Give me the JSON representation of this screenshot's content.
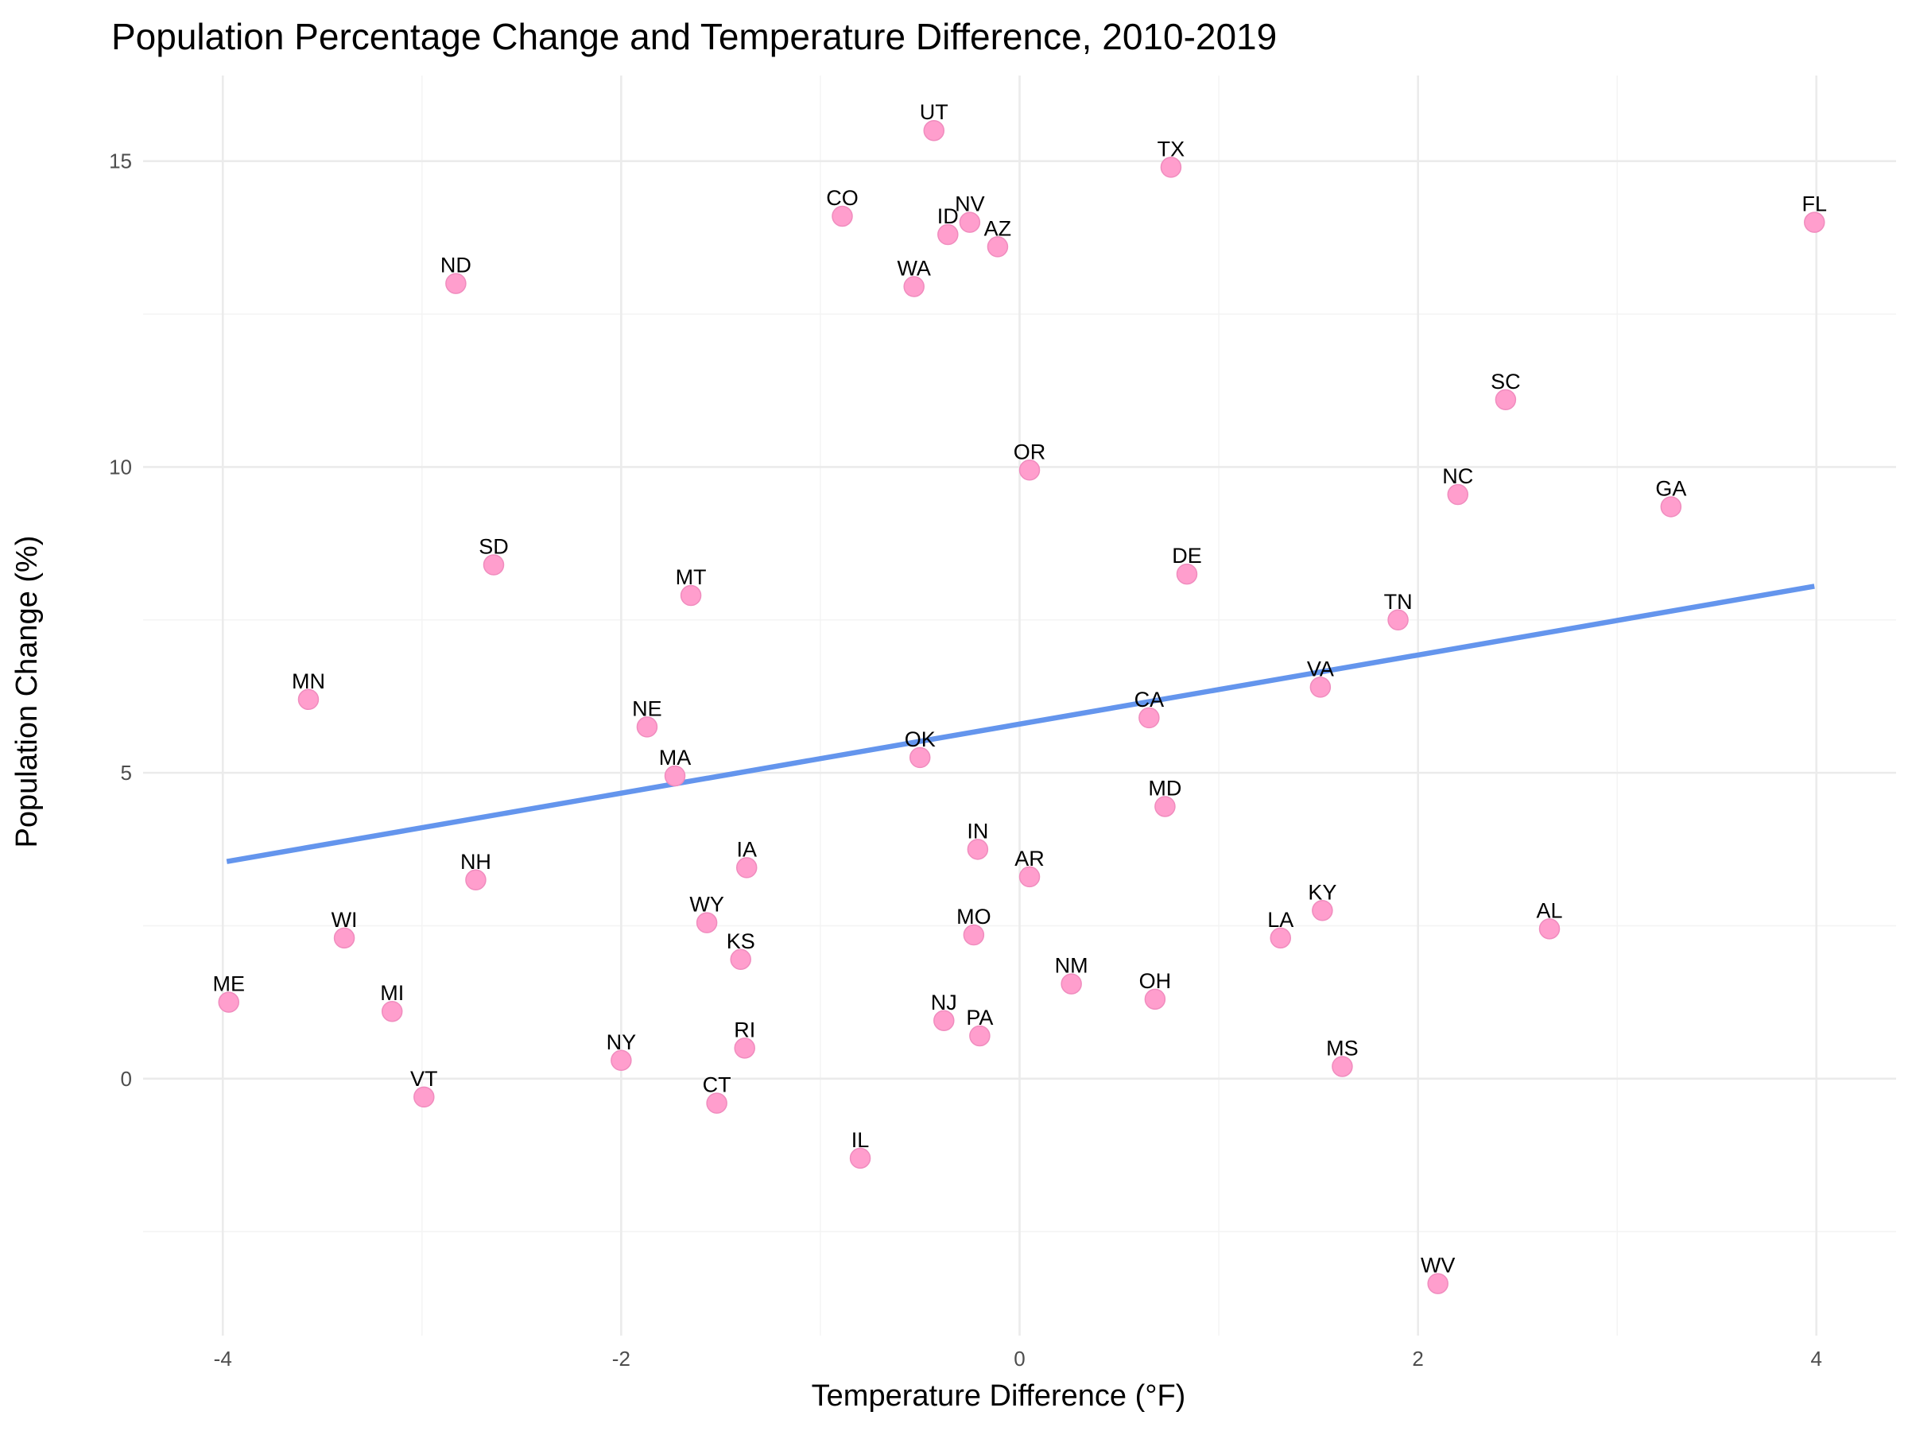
{
  "chart_data": {
    "type": "scatter",
    "title": "Population Percentage Change and Temperature Difference, 2010-2019",
    "xlabel": "Temperature Difference (°F)",
    "ylabel": "Population Change (%)",
    "xlim": [
      -4.4,
      4.4
    ],
    "ylim": [
      -4.2,
      16.4
    ],
    "x_ticks": [
      -4,
      -2,
      0,
      2,
      4
    ],
    "y_ticks": [
      0,
      5,
      10,
      15
    ],
    "x_tick_labels": [
      "-4",
      "-2",
      "0",
      "2",
      "4"
    ],
    "y_tick_labels": [
      "0",
      "5",
      "10",
      "15"
    ],
    "grid": true,
    "point_color": "#ff9ecd",
    "trend_color": "#6495ed",
    "trend_line": {
      "x": [
        -3.98,
        3.99
      ],
      "y": [
        3.55,
        8.05
      ]
    },
    "points": [
      {
        "label": "UT",
        "x": -0.43,
        "y": 15.5
      },
      {
        "label": "TX",
        "x": 0.76,
        "y": 14.9
      },
      {
        "label": "CO",
        "x": -0.89,
        "y": 14.1
      },
      {
        "label": "NV",
        "x": -0.25,
        "y": 14.0
      },
      {
        "label": "ID",
        "x": -0.36,
        "y": 13.8
      },
      {
        "label": "AZ",
        "x": -0.11,
        "y": 13.6
      },
      {
        "label": "FL",
        "x": 3.99,
        "y": 14.0
      },
      {
        "label": "ND",
        "x": -2.83,
        "y": 13.0
      },
      {
        "label": "WA",
        "x": -0.53,
        "y": 12.95
      },
      {
        "label": "SC",
        "x": 2.44,
        "y": 11.1
      },
      {
        "label": "OR",
        "x": 0.05,
        "y": 9.95
      },
      {
        "label": "NC",
        "x": 2.2,
        "y": 9.55
      },
      {
        "label": "GA",
        "x": 3.27,
        "y": 9.35
      },
      {
        "label": "SD",
        "x": -2.64,
        "y": 8.4
      },
      {
        "label": "DE",
        "x": 0.84,
        "y": 8.25
      },
      {
        "label": "MT",
        "x": -1.65,
        "y": 7.9
      },
      {
        "label": "TN",
        "x": 1.9,
        "y": 7.5
      },
      {
        "label": "VA",
        "x": 1.51,
        "y": 6.4
      },
      {
        "label": "MN",
        "x": -3.57,
        "y": 6.2
      },
      {
        "label": "CA",
        "x": 0.65,
        "y": 5.9
      },
      {
        "label": "NE",
        "x": -1.87,
        "y": 5.75
      },
      {
        "label": "OK",
        "x": -0.5,
        "y": 5.25
      },
      {
        "label": "MA",
        "x": -1.73,
        "y": 4.95
      },
      {
        "label": "MD",
        "x": 0.73,
        "y": 4.45
      },
      {
        "label": "IN",
        "x": -0.21,
        "y": 3.75
      },
      {
        "label": "IA",
        "x": -1.37,
        "y": 3.45
      },
      {
        "label": "AR",
        "x": 0.05,
        "y": 3.3
      },
      {
        "label": "NH",
        "x": -2.73,
        "y": 3.25
      },
      {
        "label": "KY",
        "x": 1.52,
        "y": 2.75
      },
      {
        "label": "WY",
        "x": -1.57,
        "y": 2.55
      },
      {
        "label": "AL",
        "x": 2.66,
        "y": 2.45
      },
      {
        "label": "MO",
        "x": -0.23,
        "y": 2.35
      },
      {
        "label": "WI",
        "x": -3.39,
        "y": 2.3
      },
      {
        "label": "LA",
        "x": 1.31,
        "y": 2.3
      },
      {
        "label": "KS",
        "x": -1.4,
        "y": 1.95
      },
      {
        "label": "NM",
        "x": 0.26,
        "y": 1.55
      },
      {
        "label": "OH",
        "x": 0.68,
        "y": 1.3
      },
      {
        "label": "ME",
        "x": -3.97,
        "y": 1.25
      },
      {
        "label": "MI",
        "x": -3.15,
        "y": 1.1
      },
      {
        "label": "NJ",
        "x": -0.38,
        "y": 0.95
      },
      {
        "label": "PA",
        "x": -0.2,
        "y": 0.7
      },
      {
        "label": "RI",
        "x": -1.38,
        "y": 0.5
      },
      {
        "label": "NY",
        "x": -2.0,
        "y": 0.3
      },
      {
        "label": "MS",
        "x": 1.62,
        "y": 0.2
      },
      {
        "label": "VT",
        "x": -2.99,
        "y": -0.3
      },
      {
        "label": "CT",
        "x": -1.52,
        "y": -0.4
      },
      {
        "label": "IL",
        "x": -0.8,
        "y": -1.3
      },
      {
        "label": "WV",
        "x": 2.1,
        "y": -3.35
      }
    ]
  }
}
